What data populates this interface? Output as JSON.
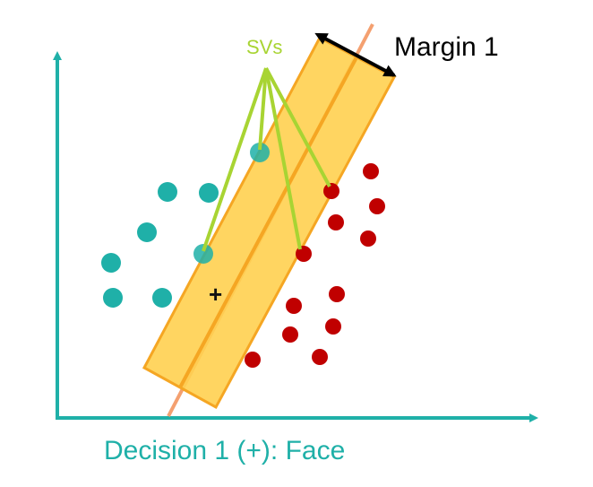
{
  "labels": {
    "margin": "Margin 1",
    "svs": "SVs",
    "plus": "+",
    "caption": "Decision 1 (+): Face"
  },
  "colors": {
    "axis": "#1fb0a8",
    "class_negative": "#1fb0a8",
    "class_positive": "#c00000",
    "margin_band_fill": "#ffd050",
    "margin_band_stroke": "#f5a623",
    "boundary_line": "#f4a070",
    "sv_pointer": "#a8d433",
    "margin_arrow": "#000000"
  }
}
